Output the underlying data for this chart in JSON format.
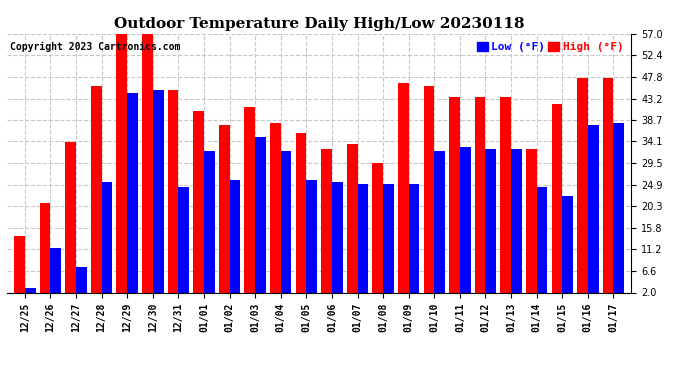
{
  "title": "Outdoor Temperature Daily High/Low 20230118",
  "copyright": "Copyright 2023 Cartronics.com",
  "legend_low_label": "Low (°F)",
  "legend_high_label": "High (°F)",
  "low_color": "#0000ff",
  "high_color": "#ff0000",
  "background_color": "#ffffff",
  "dates": [
    "12/25",
    "12/26",
    "12/27",
    "12/28",
    "12/29",
    "12/30",
    "12/31",
    "01/01",
    "01/02",
    "01/03",
    "01/04",
    "01/05",
    "01/06",
    "01/07",
    "01/08",
    "01/09",
    "01/10",
    "01/11",
    "01/12",
    "01/13",
    "01/14",
    "01/15",
    "01/16",
    "01/17"
  ],
  "highs": [
    14.0,
    21.0,
    34.0,
    46.0,
    57.0,
    57.0,
    45.0,
    40.5,
    37.5,
    41.5,
    38.0,
    36.0,
    32.5,
    33.5,
    29.5,
    46.5,
    46.0,
    43.5,
    43.5,
    43.5,
    32.5,
    42.0,
    47.5,
    47.5
  ],
  "lows": [
    3.0,
    11.5,
    7.5,
    25.5,
    44.5,
    45.0,
    24.5,
    32.0,
    26.0,
    35.0,
    32.0,
    26.0,
    25.5,
    25.0,
    25.0,
    25.0,
    32.0,
    33.0,
    32.5,
    32.5,
    24.5,
    22.5,
    37.5,
    38.0
  ],
  "yticks": [
    2.0,
    6.6,
    11.2,
    15.8,
    20.3,
    24.9,
    29.5,
    34.1,
    38.7,
    43.2,
    47.8,
    52.4,
    57.0
  ],
  "ymin": 2.0,
  "ymax": 57.0,
  "grid_color": "#c8c8c8",
  "title_fontsize": 11,
  "copyright_fontsize": 7,
  "legend_fontsize": 8,
  "tick_fontsize": 7,
  "bar_width": 0.42
}
